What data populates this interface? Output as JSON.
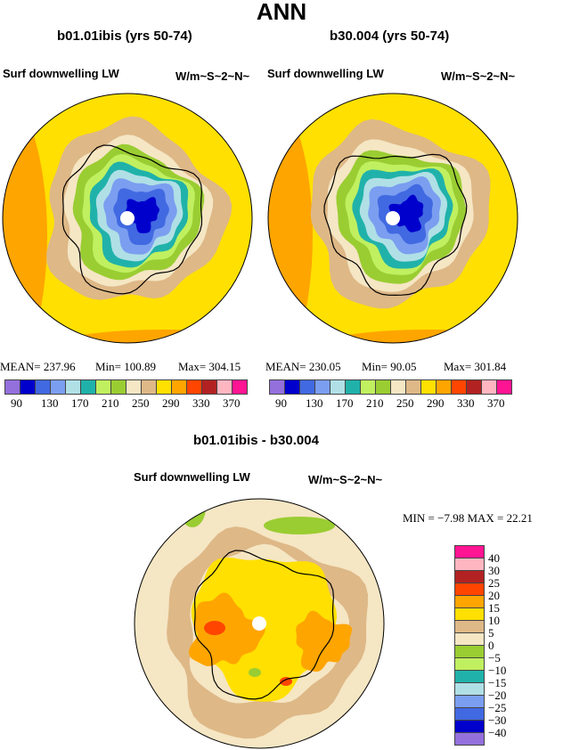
{
  "title": "ANN",
  "colors": [
    "#9370DB",
    "#0000CD",
    "#4169E1",
    "#7B9EF0",
    "#B0E0E6",
    "#20B2AA",
    "#C0F060",
    "#9ACD32",
    "#F5E6C4",
    "#DEB887",
    "#FFE000",
    "#FFA500",
    "#FF4500",
    "#B22222",
    "#FFB6C1",
    "#FF1493"
  ],
  "panels": [
    {
      "case": "b01.01ibis (yrs 50-74)",
      "variable": "Surf downwelling LW",
      "units": "W/m~S~2~N~",
      "mean": "MEAN=  237.96",
      "min": "Min=  100.89",
      "max": "Max=  304.15"
    },
    {
      "case": "b30.004 (yrs 50-74)",
      "variable": "Surf downwelling LW",
      "units": "W/m~S~2~N~",
      "mean": "MEAN= 230.05",
      "min": "Min=   90.05",
      "max": "Max=  301.84"
    }
  ],
  "abs_ticks": [
    "90",
    "130",
    "170",
    "210",
    "250",
    "290",
    "330",
    "370"
  ],
  "diff": {
    "title": "b01.01ibis - b30.004",
    "variable": "Surf downwelling LW",
    "units": "W/m~S~2~N~",
    "minmax": "MIN =   −7.98  MAX =   22.21",
    "ticks": [
      "40",
      "30",
      "25",
      "20",
      "15",
      "10",
      "5",
      "0",
      "−5",
      "−10",
      "−15",
      "−20",
      "−25",
      "−30",
      "−40"
    ]
  }
}
